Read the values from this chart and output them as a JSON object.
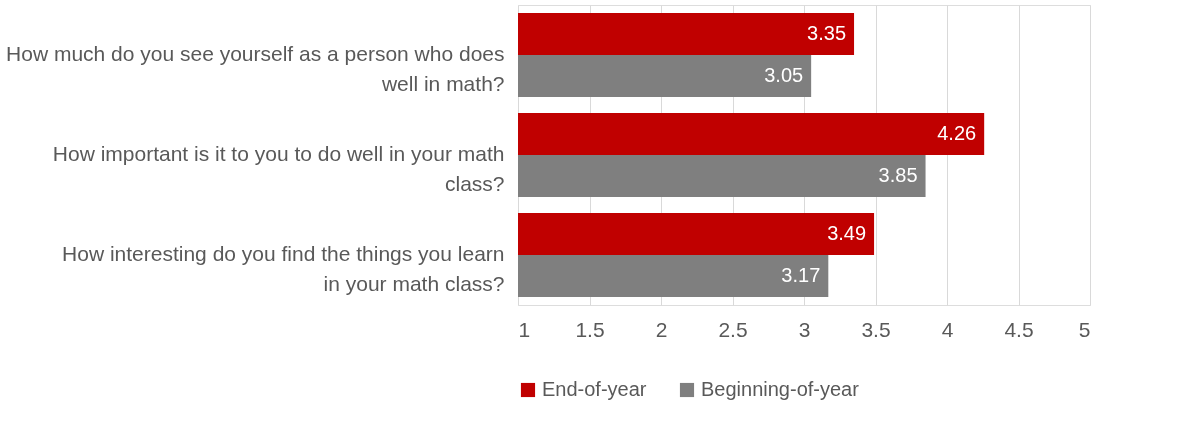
{
  "chart_data": {
    "type": "bar",
    "orientation": "horizontal",
    "categories": [
      "How much do you see yourself as a person who does well in math?",
      "How important is it to you to do well in your math class?",
      "How interesting do you find the things you learn in your math class?"
    ],
    "series": [
      {
        "name": "End-of-year",
        "color": "#c00000",
        "values": [
          3.35,
          4.26,
          3.49
        ]
      },
      {
        "name": "Beginning-of-year",
        "color": "#7f7f7f",
        "values": [
          3.05,
          3.85,
          3.17
        ]
      }
    ],
    "xlim": [
      1,
      5
    ],
    "xticks": [
      1,
      1.5,
      2,
      2.5,
      3,
      3.5,
      4,
      4.5,
      5
    ],
    "grid": "x",
    "legend": "bottom",
    "data_labels": true
  }
}
